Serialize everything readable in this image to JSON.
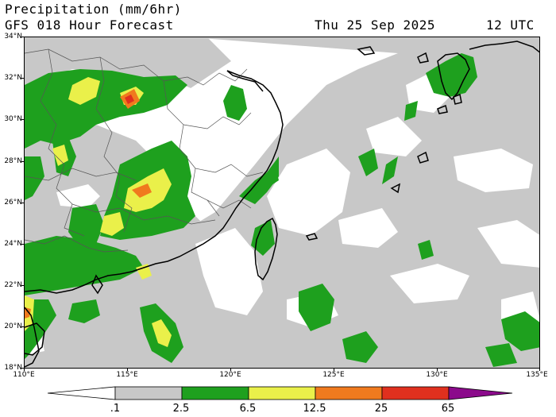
{
  "header": {
    "title_line1": "Precipitation (mm/6hr)",
    "title_line2": "GFS 018 Hour Forecast",
    "valid_date": "Thu 25 Sep 2025",
    "valid_time": "12 UTC"
  },
  "map": {
    "region": "East China, Taiwan and the western Pacific",
    "lat_range": [
      18,
      34
    ],
    "lon_range": [
      110,
      135
    ],
    "lat_labels": [
      "34°N",
      "32°N",
      "30°N",
      "28°N",
      "26°N",
      "24°N",
      "22°N",
      "20°N",
      "18°N"
    ],
    "lon_labels": [
      "110°E",
      "115°E",
      "120°E",
      "125°E",
      "130°E",
      "135°E"
    ],
    "colors": {
      "light": "#c8c8c8",
      "moderate": "#1ea01e",
      "heavy": "#eaf04a",
      "very_heavy": "#f07a1e",
      "extreme": "#e0301e",
      "coast": "#000000",
      "border": "#555555"
    }
  },
  "legend": {
    "labels": [
      ".1",
      "2.5",
      "6.5",
      "12.5",
      "25",
      "65"
    ],
    "bins": [
      {
        "from": 0.1,
        "to": 2.5,
        "color": "#c8c8c8"
      },
      {
        "from": 2.5,
        "to": 6.5,
        "color": "#1ea01e"
      },
      {
        "from": 6.5,
        "to": 12.5,
        "color": "#eaf04a"
      },
      {
        "from": 12.5,
        "to": 25,
        "color": "#f07a1e"
      },
      {
        "from": 25,
        "to": 65,
        "color": "#e0301e"
      },
      {
        "from": 65,
        "to": null,
        "color": "#8b0a8b"
      }
    ]
  }
}
